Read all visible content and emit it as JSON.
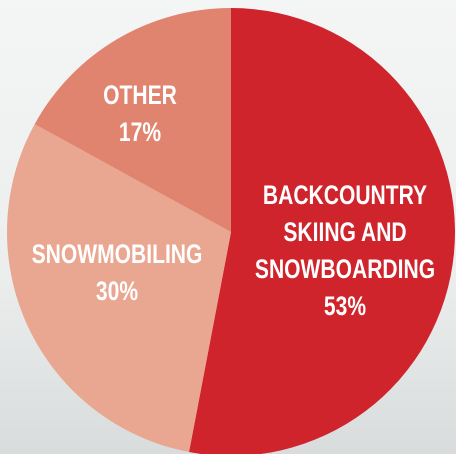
{
  "chart_data": {
    "type": "pie",
    "categories": [
      "BACKCOUNTRY SKIING AND SNOWBOARDING",
      "SNOWMOBILING",
      "OTHER"
    ],
    "values": [
      53,
      30,
      17
    ],
    "value_labels": [
      "53%",
      "30%",
      "17%"
    ],
    "colors": [
      "#d0242c",
      "#e9a690",
      "#e0836f"
    ]
  }
}
